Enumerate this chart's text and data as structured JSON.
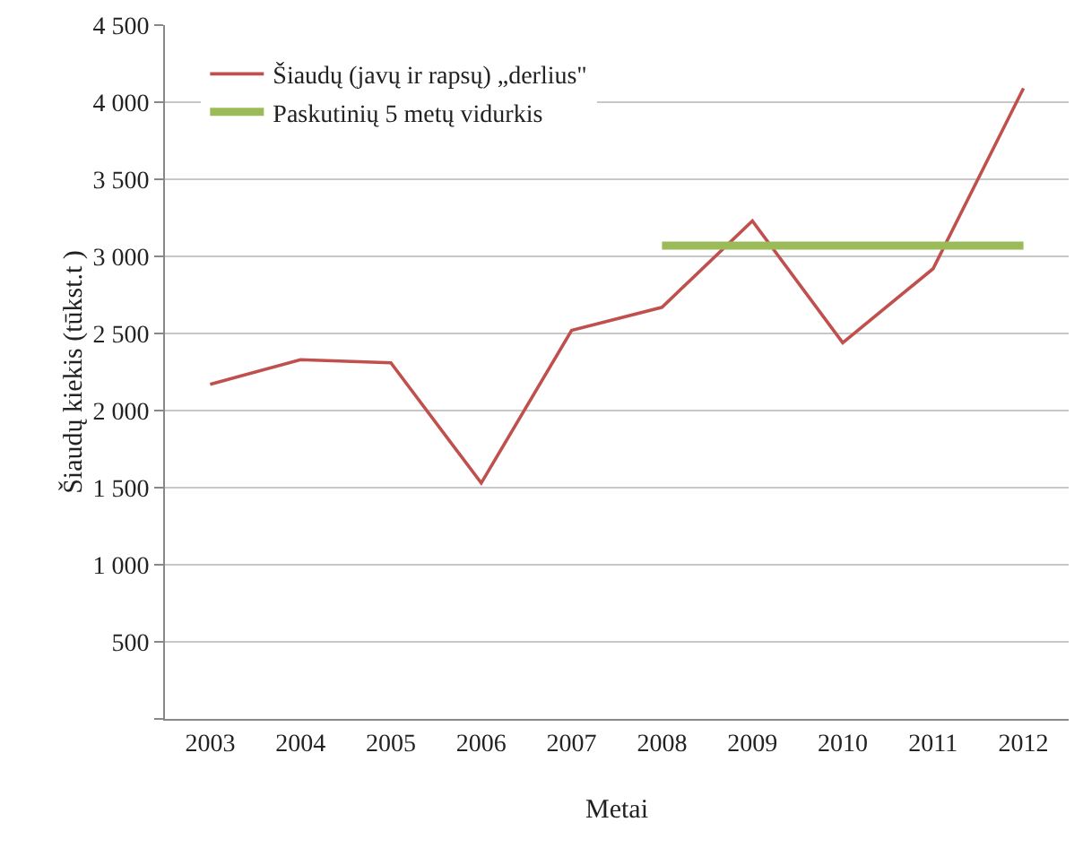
{
  "chart_data": {
    "type": "line",
    "xlabel": "Metai",
    "ylabel": "Šiaudų kiekis (tūkst.t )",
    "categories": [
      "2003",
      "2004",
      "2005",
      "2006",
      "2007",
      "2008",
      "2009",
      "2010",
      "2011",
      "2012"
    ],
    "series": [
      {
        "name": "Šiaudų (javų ir rapsų) „derlius\"",
        "color": "#c0504d",
        "values": [
          2170,
          2330,
          2310,
          1530,
          2520,
          2670,
          3230,
          2440,
          2920,
          4090
        ]
      },
      {
        "name": "Paskutinių 5 metų vidurkis",
        "color": "#9bbb59",
        "line_style": "solid",
        "values": [
          null,
          null,
          null,
          null,
          null,
          3070,
          3070,
          3070,
          3070,
          3070
        ]
      }
    ],
    "ylim": [
      0,
      4500
    ],
    "yticks": [
      {
        "value": 0,
        "label": null
      },
      {
        "value": 500,
        "label": "500"
      },
      {
        "value": 1000,
        "label": "1 000"
      },
      {
        "value": 1500,
        "label": "1 500"
      },
      {
        "value": 2000,
        "label": "2 000"
      },
      {
        "value": 2500,
        "label": "2 500"
      },
      {
        "value": 3000,
        "label": "3 000"
      },
      {
        "value": 3500,
        "label": "3 500"
      },
      {
        "value": 4000,
        "label": "4 000"
      },
      {
        "value": 4500,
        "label": "4 500"
      }
    ],
    "grid": "y",
    "legend": "top left",
    "marker": "none"
  }
}
